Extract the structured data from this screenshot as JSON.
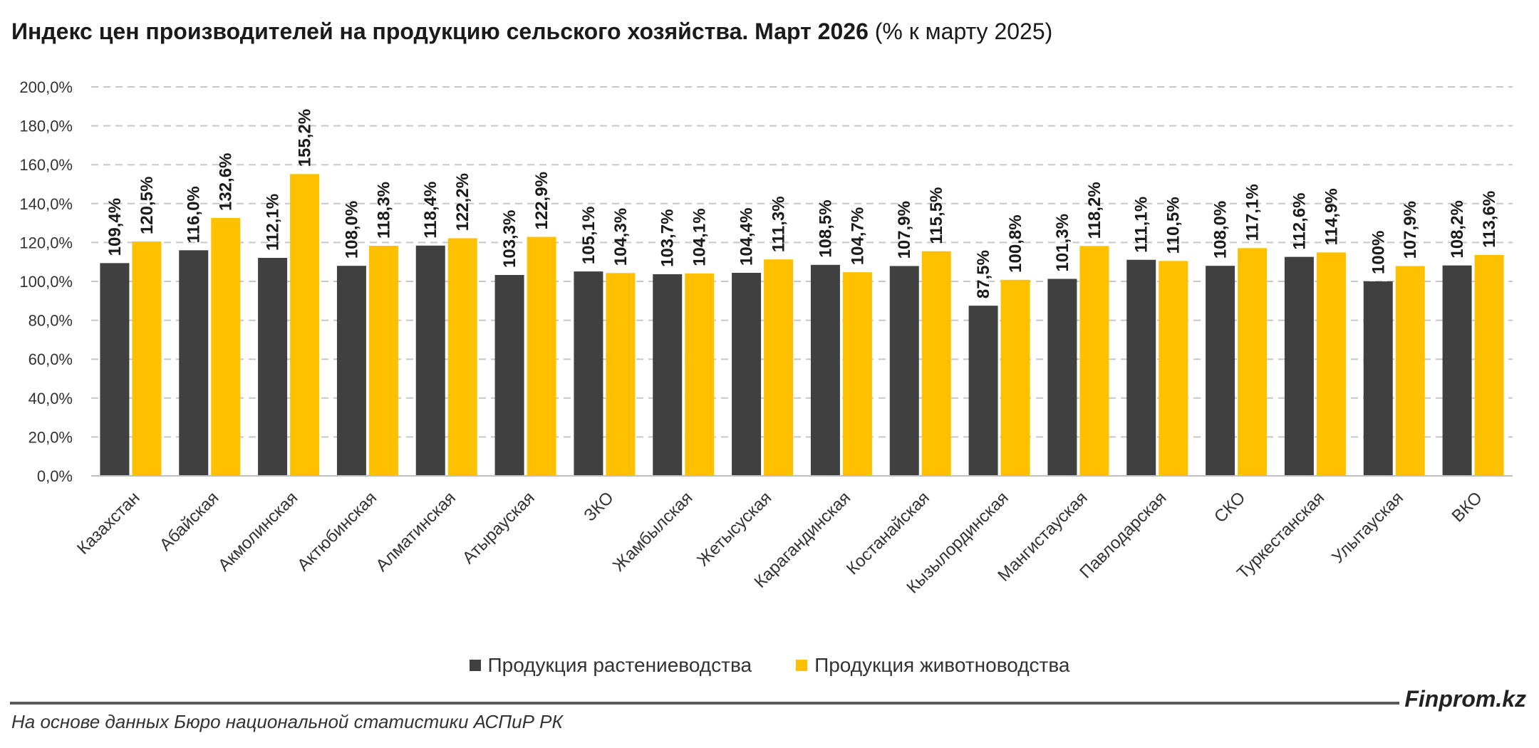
{
  "title": {
    "main": "Индекс цен производителей на продукцию сельского хозяйства. Март 2026",
    "sub": "(% к марту 2025)"
  },
  "chart_data": {
    "type": "bar",
    "categories": [
      "Казахстан",
      "Абайская",
      "Акмолинская",
      "Актюбинская",
      "Алматинская",
      "Атырауская",
      "ЗКО",
      "Жамбылская",
      "Жетысуская",
      "Карагандинская",
      "Костанайская",
      "Кызылординская",
      "Мангистауская",
      "Павлодарская",
      "СКО",
      "Туркестанская",
      "Улытауская",
      "ВКО"
    ],
    "series": [
      {
        "name": "Продукция растениеводства",
        "color": "#404040",
        "values": [
          109.4,
          116.0,
          112.1,
          108.0,
          118.4,
          103.3,
          105.1,
          103.7,
          104.4,
          108.5,
          107.9,
          87.5,
          101.3,
          111.1,
          108.0,
          112.6,
          100.0,
          108.2
        ],
        "labels": [
          "109,4%",
          "116,0%",
          "112,1%",
          "108,0%",
          "118,4%",
          "103,3%",
          "105,1%",
          "103,7%",
          "104,4%",
          "108,5%",
          "107,9%",
          "87,5%",
          "101,3%",
          "111,1%",
          "108,0%",
          "112,6%",
          "100%",
          "108,2%"
        ]
      },
      {
        "name": "Продукция животноводства",
        "color": "#FFC000",
        "values": [
          120.5,
          132.6,
          155.2,
          118.3,
          122.2,
          122.9,
          104.3,
          104.1,
          111.3,
          104.7,
          115.5,
          100.8,
          118.2,
          110.5,
          117.1,
          114.9,
          107.9,
          113.6
        ],
        "labels": [
          "120,5%",
          "132,6%",
          "155,2%",
          "118,3%",
          "122,2%",
          "122,9%",
          "104,3%",
          "104,1%",
          "111,3%",
          "104,7%",
          "115,5%",
          "100,8%",
          "118,2%",
          "110,5%",
          "117,1%",
          "114,9%",
          "107,9%",
          "113,6%"
        ]
      }
    ],
    "ylim": [
      0,
      200
    ],
    "yticks": [
      "0,0%",
      "20,0%",
      "40,0%",
      "60,0%",
      "80,0%",
      "100,0%",
      "120,0%",
      "140,0%",
      "160,0%",
      "180,0%",
      "200,0%"
    ],
    "grid": true,
    "legend_position": "bottom"
  },
  "footer": {
    "brand": "Finprom.kz",
    "source": "На основе данных Бюро национальной статистики АСПиР РК"
  }
}
